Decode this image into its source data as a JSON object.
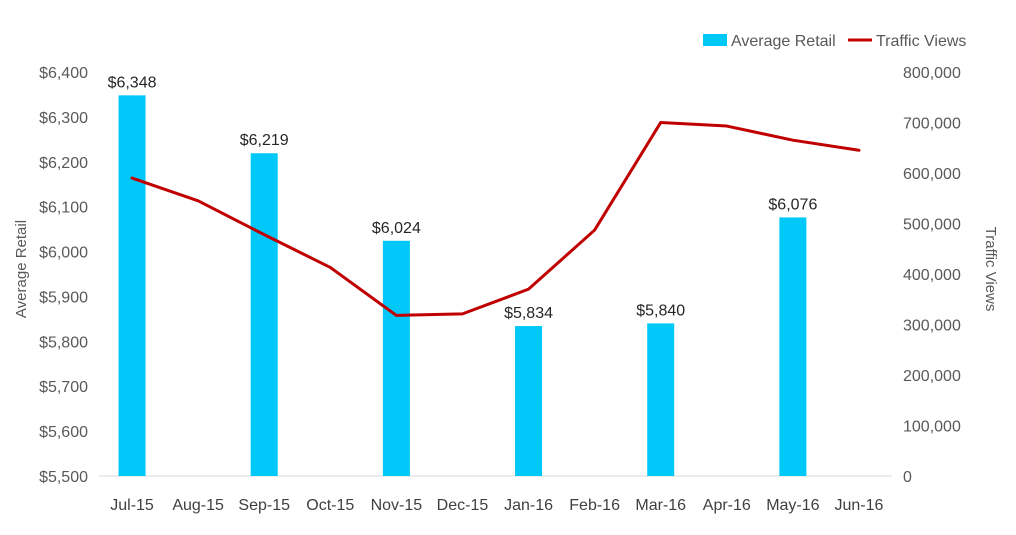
{
  "chart_data": {
    "type": "bar+line",
    "categories": [
      "Jul-15",
      "Aug-15",
      "Sep-15",
      "Oct-15",
      "Nov-15",
      "Dec-15",
      "Jan-16",
      "Feb-16",
      "Mar-16",
      "Apr-16",
      "May-16",
      "Jun-16"
    ],
    "series": [
      {
        "name": "Average Retail",
        "type": "bar",
        "axis": "left",
        "color": "#00C8F8",
        "values": [
          6348,
          null,
          6219,
          null,
          6024,
          null,
          5834,
          null,
          5840,
          null,
          6076,
          null
        ],
        "labels": [
          "$6,348",
          "",
          "$6,219",
          "",
          "$6,024",
          "",
          "$5,834",
          "",
          "$5,840",
          "",
          "$6,076",
          ""
        ]
      },
      {
        "name": "Traffic Views",
        "type": "line",
        "axis": "right",
        "color": "#C00000",
        "values": [
          590000,
          545000,
          478000,
          413000,
          318000,
          321000,
          370000,
          487000,
          700000,
          693000,
          665000,
          645000
        ]
      }
    ],
    "yleft": {
      "label": "Average Retail",
      "ylim": [
        5500,
        6400
      ],
      "ticks": [
        "$5,500",
        "$5,600",
        "$5,700",
        "$5,800",
        "$5,900",
        "$6,000",
        "$6,100",
        "$6,200",
        "$6,300",
        "$6,400"
      ]
    },
    "yright": {
      "label": "Traffic Views",
      "ylim": [
        0,
        800000
      ],
      "ticks": [
        "0",
        "100,000",
        "200,000",
        "300,000",
        "400,000",
        "500,000",
        "600,000",
        "700,000",
        "800,000"
      ]
    },
    "grid": false,
    "legend": {
      "position": "top-right",
      "items": [
        {
          "name": "Average Retail",
          "color": "#00C8F8",
          "shape": "rect"
        },
        {
          "name": "Traffic Views",
          "color": "#C00000",
          "shape": "line"
        }
      ]
    }
  }
}
